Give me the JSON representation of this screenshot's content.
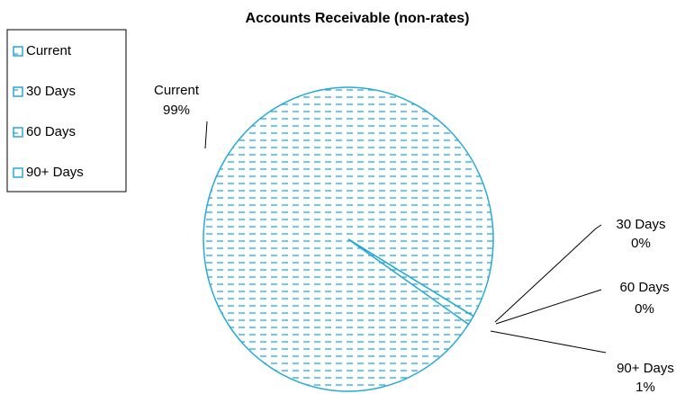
{
  "chart_data": {
    "type": "pie",
    "title": "Accounts Receivable (non-rates)",
    "categories": [
      "Current",
      "30 Days",
      "60 Days",
      "90+ Days"
    ],
    "values": [
      99,
      0,
      0,
      1
    ],
    "value_labels": [
      "99%",
      "0%",
      "0%",
      "1%"
    ],
    "color": "#29a9d9",
    "legend": "left"
  }
}
